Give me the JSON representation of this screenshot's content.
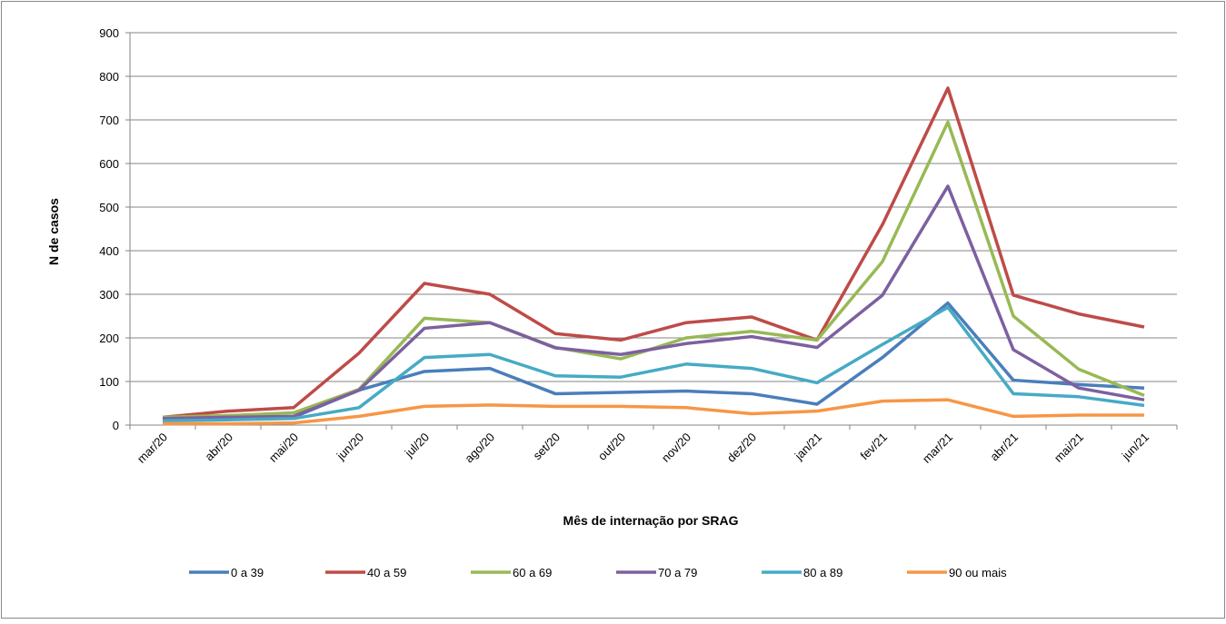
{
  "chart_data": {
    "type": "line",
    "x_label": "Mês de internação por SRAG",
    "y_label": "N de casos",
    "categories": [
      "mar/20",
      "abr/20",
      "mai/20",
      "jun/20",
      "jul/20",
      "ago/20",
      "set/20",
      "out/20",
      "nov/20",
      "dez/20",
      "jan/21",
      "fev/21",
      "mar/21",
      "abr/21",
      "mai/21",
      "jun/21"
    ],
    "series": [
      {
        "name": "0 a 39",
        "color": "#4a7ebb",
        "values": [
          15,
          15,
          18,
          80,
          123,
          130,
          72,
          75,
          78,
          72,
          48,
          155,
          280,
          103,
          93,
          85
        ]
      },
      {
        "name": "40 a 59",
        "color": "#be4b48",
        "values": [
          18,
          32,
          40,
          165,
          325,
          300,
          210,
          195,
          235,
          248,
          195,
          460,
          773,
          298,
          255,
          225
        ]
      },
      {
        "name": "60 a 69",
        "color": "#98b954",
        "values": [
          18,
          22,
          28,
          82,
          245,
          235,
          178,
          152,
          200,
          215,
          195,
          375,
          695,
          250,
          128,
          68
        ]
      },
      {
        "name": "70 a 79",
        "color": "#7d60a0",
        "values": [
          15,
          18,
          20,
          80,
          222,
          235,
          177,
          162,
          187,
          203,
          178,
          298,
          548,
          173,
          85,
          58
        ]
      },
      {
        "name": "80 a 89",
        "color": "#46aac5",
        "values": [
          10,
          12,
          15,
          40,
          155,
          162,
          113,
          110,
          140,
          130,
          97,
          185,
          270,
          72,
          65,
          45
        ]
      },
      {
        "name": "90 ou mais",
        "color": "#f79646",
        "values": [
          3,
          3,
          5,
          20,
          43,
          46,
          43,
          43,
          40,
          26,
          32,
          55,
          58,
          20,
          23,
          23
        ]
      }
    ],
    "ylim": [
      0,
      900
    ],
    "yticks": [
      0,
      100,
      200,
      300,
      400,
      500,
      600,
      700,
      800,
      900
    ],
    "grid": true,
    "legend": "bottom"
  }
}
